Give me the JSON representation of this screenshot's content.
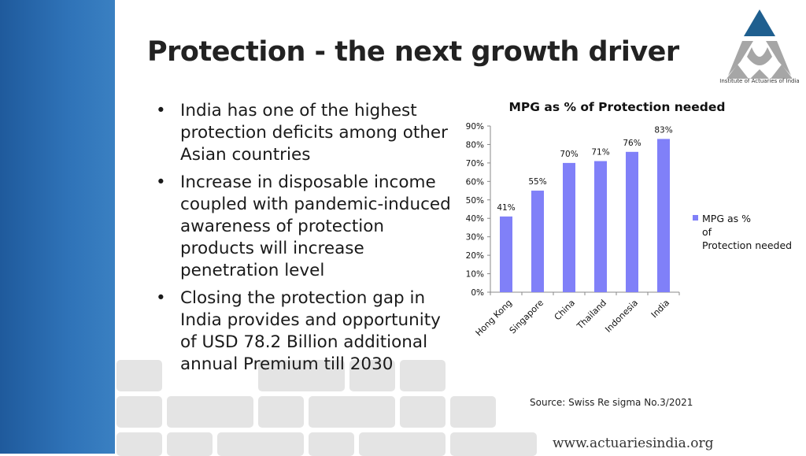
{
  "slide": {
    "title": "Protection - the next growth driver",
    "logo_text": "Institute of Actuaries of India",
    "bullets": [
      "India has one of the highest protection deficits among other Asian countries",
      "Increase in disposable income coupled with pandemic-induced awareness of protection products will increase penetration level",
      "Closing the protection gap in India provides and opportunity of USD 78.2 Billion additional annual Premium till 2030"
    ],
    "source": "Source: Swiss Re sigma No.3/2021",
    "website": "www.actuariesindia.org",
    "colors": {
      "sidebar": "#2f73b8",
      "bar": "#8080f8",
      "logo_blue": "#1f5f8f",
      "logo_grey": "#a6a6a6"
    }
  },
  "chart_data": {
    "type": "bar",
    "title": "MPG as % of Protection needed",
    "categories": [
      "Hong Kong",
      "Singapore",
      "China",
      "Thailand",
      "Indonesia",
      "India"
    ],
    "series": [
      {
        "name": "MPG as % of Protection needed",
        "values": [
          41,
          55,
          70,
          71,
          76,
          83
        ]
      }
    ],
    "data_labels": [
      "41%",
      "55%",
      "70%",
      "71%",
      "76%",
      "83%"
    ],
    "yticks": [
      "0%",
      "10%",
      "20%",
      "30%",
      "40%",
      "50%",
      "60%",
      "70%",
      "80%",
      "90%"
    ],
    "ylim": [
      0,
      90
    ],
    "grid": false,
    "legend": "right"
  }
}
